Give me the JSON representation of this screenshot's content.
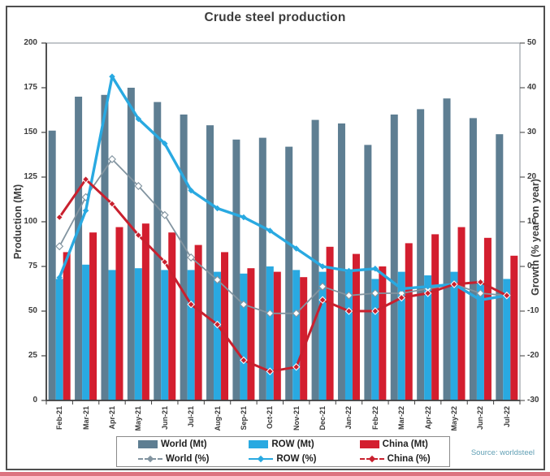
{
  "title_bar": {
    "title": "Crude steel production"
  },
  "source": {
    "label": "Source: worldsteel"
  },
  "colors": {
    "world_bar": "#5e7e92",
    "row_bar": "#29a9e1",
    "china_bar": "#d31e2f",
    "world_line": "#8294a0",
    "row_line": "#29a9e1",
    "china_line": "#c9202e",
    "axis_text": "#3c3c3c",
    "source_text": "#62a0b5",
    "frame_border": "#4f4f4f",
    "bottom_strip": "#dd7380"
  },
  "legend": {
    "items": [
      {
        "label": "World (Mt)",
        "swatch": "world_bar"
      },
      {
        "label": "ROW (Mt)",
        "swatch": "row_bar"
      },
      {
        "label": "China (Mt)",
        "swatch": "china_bar"
      },
      {
        "label": "World (%)",
        "swatch": "world_line"
      },
      {
        "label": "ROW (%)",
        "swatch": "row_line"
      },
      {
        "label": "China (%)",
        "swatch": "china_line"
      }
    ]
  },
  "chart_data": {
    "type": "bar",
    "title": "Crude steel production",
    "ylabel_left": "Production (Mt)",
    "ylabel_right": "Growth (% year on year)",
    "ylim_left": [
      0,
      200
    ],
    "ylim_right": [
      -30,
      50
    ],
    "left_ticks": [
      0,
      25,
      50,
      75,
      100,
      125,
      150,
      175,
      200
    ],
    "right_ticks": [
      -30,
      -20,
      -10,
      0,
      10,
      20,
      30,
      40,
      50
    ],
    "grid": false,
    "legend_position": "bottom",
    "categories": [
      "Feb-21",
      "Mar-21",
      "Apr-21",
      "May-21",
      "Jun-21",
      "Jul-21",
      "Aug-21",
      "Sep-21",
      "Oct-21",
      "Nov-21",
      "Dec-21",
      "Jan-22",
      "Feb-22",
      "Mar-22",
      "Apr-22",
      "May-22",
      "Jun-22",
      "Jul-22"
    ],
    "bar_series": [
      {
        "name": "World (Mt)",
        "color": "world_bar",
        "values": [
          151,
          170,
          171,
          175,
          167,
          160,
          154,
          146,
          147,
          142,
          157,
          155,
          143,
          160,
          163,
          169,
          158,
          149
        ]
      },
      {
        "name": "ROW (Mt)",
        "color": "row_bar",
        "values": [
          68,
          76,
          73,
          74,
          73,
          73,
          72,
          71,
          75,
          73,
          72,
          72,
          68,
          72,
          70,
          72,
          67,
          68
        ]
      },
      {
        "name": "China (Mt)",
        "color": "china_bar",
        "values": [
          83,
          94,
          97,
          99,
          94,
          87,
          83,
          74,
          72,
          69,
          86,
          82,
          75,
          88,
          93,
          97,
          91,
          81
        ]
      }
    ],
    "line_series": [
      {
        "name": "World (%)",
        "color": "world_line",
        "axis": "right",
        "width": 1.8,
        "marker": "open",
        "msize": 4.2,
        "values": [
          4.5,
          15.5,
          24,
          18,
          11.5,
          2,
          -3,
          -8.5,
          -10.5,
          -10.5,
          -4.5,
          -6.5,
          -6,
          -6,
          -5,
          -4,
          -6,
          -6.5
        ]
      },
      {
        "name": "ROW (%)",
        "color": "row_line",
        "axis": "right",
        "width": 3.4,
        "marker": "filled",
        "msize": 3.2,
        "values": [
          -2.5,
          12.5,
          42.5,
          33,
          27.5,
          17,
          13,
          11,
          8,
          4,
          0,
          -1,
          -0.5,
          -5,
          -4.5,
          -4,
          -7.5,
          -6.5
        ]
      },
      {
        "name": "China (%)",
        "color": "china_line",
        "axis": "right",
        "width": 3,
        "marker": "filled-white",
        "msize": 4,
        "values": [
          11,
          19.5,
          14,
          7,
          1,
          -8.5,
          -13,
          -21,
          -23.5,
          -22.5,
          -7.5,
          -10,
          -10,
          -7,
          -6,
          -4,
          -3.5,
          -6.5
        ]
      }
    ]
  }
}
